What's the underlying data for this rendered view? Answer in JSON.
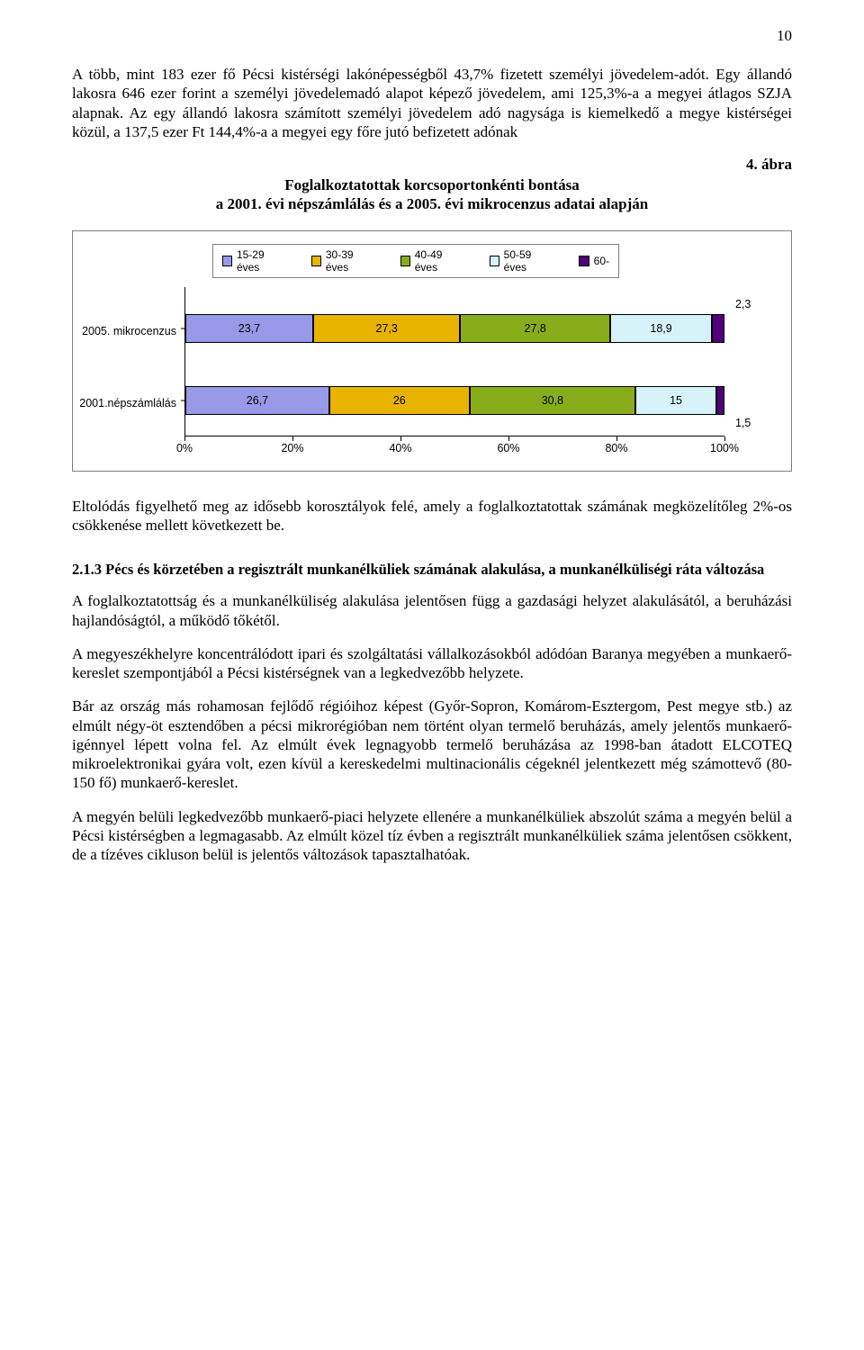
{
  "page_number": "10",
  "para1": "A több, mint 183 ezer fő Pécsi kistérségi lakónépességből 43,7% fizetett személyi jövedelem-adót. Egy állandó lakosra 646 ezer forint a személyi jövedelemadó alapot képező jövedelem, ami 125,3%-a a megyei átlagos SZJA alapnak. Az egy állandó lakosra számított személyi jövedelem adó nagysága is kiemelkedő a megye kistérségei közül, a 137,5 ezer Ft 144,4%-a a megyei egy főre jutó befizetett adónak",
  "figure_number": "4. ábra",
  "figure_title_l1": "Foglalkoztatottak korcsoportonkénti bontása",
  "figure_title_l2": "a 2001. évi népszámlálás és a 2005. évi mikrocenzus adatai alapján",
  "chart": {
    "type": "stacked-bar-horizontal",
    "legend": [
      {
        "label": "15-29 éves",
        "color": "#9999e9"
      },
      {
        "label": "30-39 éves",
        "color": "#e8b400"
      },
      {
        "label": "40-49 éves",
        "color": "#87ad1a"
      },
      {
        "label": "50-59 éves",
        "color": "#d5f3f8"
      },
      {
        "label": "60-",
        "color": "#51007b"
      }
    ],
    "rows": [
      {
        "label": "2005. mikrocenzus",
        "values": [
          23.7,
          27.3,
          27.8,
          18.9,
          2.3
        ],
        "text": [
          "23,7",
          "27,3",
          "27,8",
          "18,9",
          "2,3"
        ]
      },
      {
        "label": "2001.népszámlálás",
        "values": [
          26.7,
          26.0,
          30.8,
          15.0,
          1.5
        ],
        "text": [
          "26,7",
          "26",
          "30,8",
          "15",
          "1,5"
        ]
      }
    ],
    "x_ticks": [
      "0%",
      "20%",
      "40%",
      "60%",
      "80%",
      "100%"
    ],
    "x_positions_pct": [
      0,
      20,
      40,
      60,
      80,
      100
    ],
    "xlim": 100,
    "grid_color": "#7f7f7f",
    "border_color": "#000000",
    "background": "#ffffff",
    "label_font_pt": 12.5
  },
  "para2": "Eltolódás figyelhető meg az idősebb korosztályok felé, amely a foglalkoztatottak számának megközelítőleg 2%-os csökkenése mellett következett be.",
  "heading": "2.1.3 Pécs és körzetében a regisztrált munkanélküliek számának alakulása, a munkanélküliségi ráta változása",
  "para3": "A foglalkoztatottság és a munkanélküliség alakulása jelentősen függ a gazdasági helyzet alakulásától, a beruházási hajlandóságtól, a működő tőkétől.",
  "para4": "A megyeszékhelyre koncentrálódott ipari és szolgáltatási vállalkozásokból adódóan Baranya megyében a munkaerő-kereslet szempontjából a Pécsi kistérségnek van a legkedvezőbb helyzete.",
  "para5": "Bár az ország más rohamosan fejlődő régióihoz képest (Győr-Sopron, Komárom-Esztergom, Pest megye stb.) az elmúlt négy-öt esztendőben a pécsi mikrorégióban nem történt olyan termelő beruházás, amely jelentős munkaerő-igénnyel lépett volna fel. Az elmúlt évek legnagyobb termelő beruházása az 1998-ban átadott ELCOTEQ mikroelektronikai gyára volt, ezen kívül a kereskedelmi multinacionális cégeknél jelentkezett még számottevő (80-150 fő) munkaerő-kereslet.",
  "para6": "A megyén belüli legkedvezőbb munkaerő-piaci helyzete ellenére a munkanélküliek abszolút száma a megyén belül a Pécsi kistérségben a legmagasabb. Az elmúlt közel tíz évben a regisztrált munkanélküliek száma jelentősen csökkent, de a tízéves cikluson belül is jelentős változások tapasztalhatóak."
}
